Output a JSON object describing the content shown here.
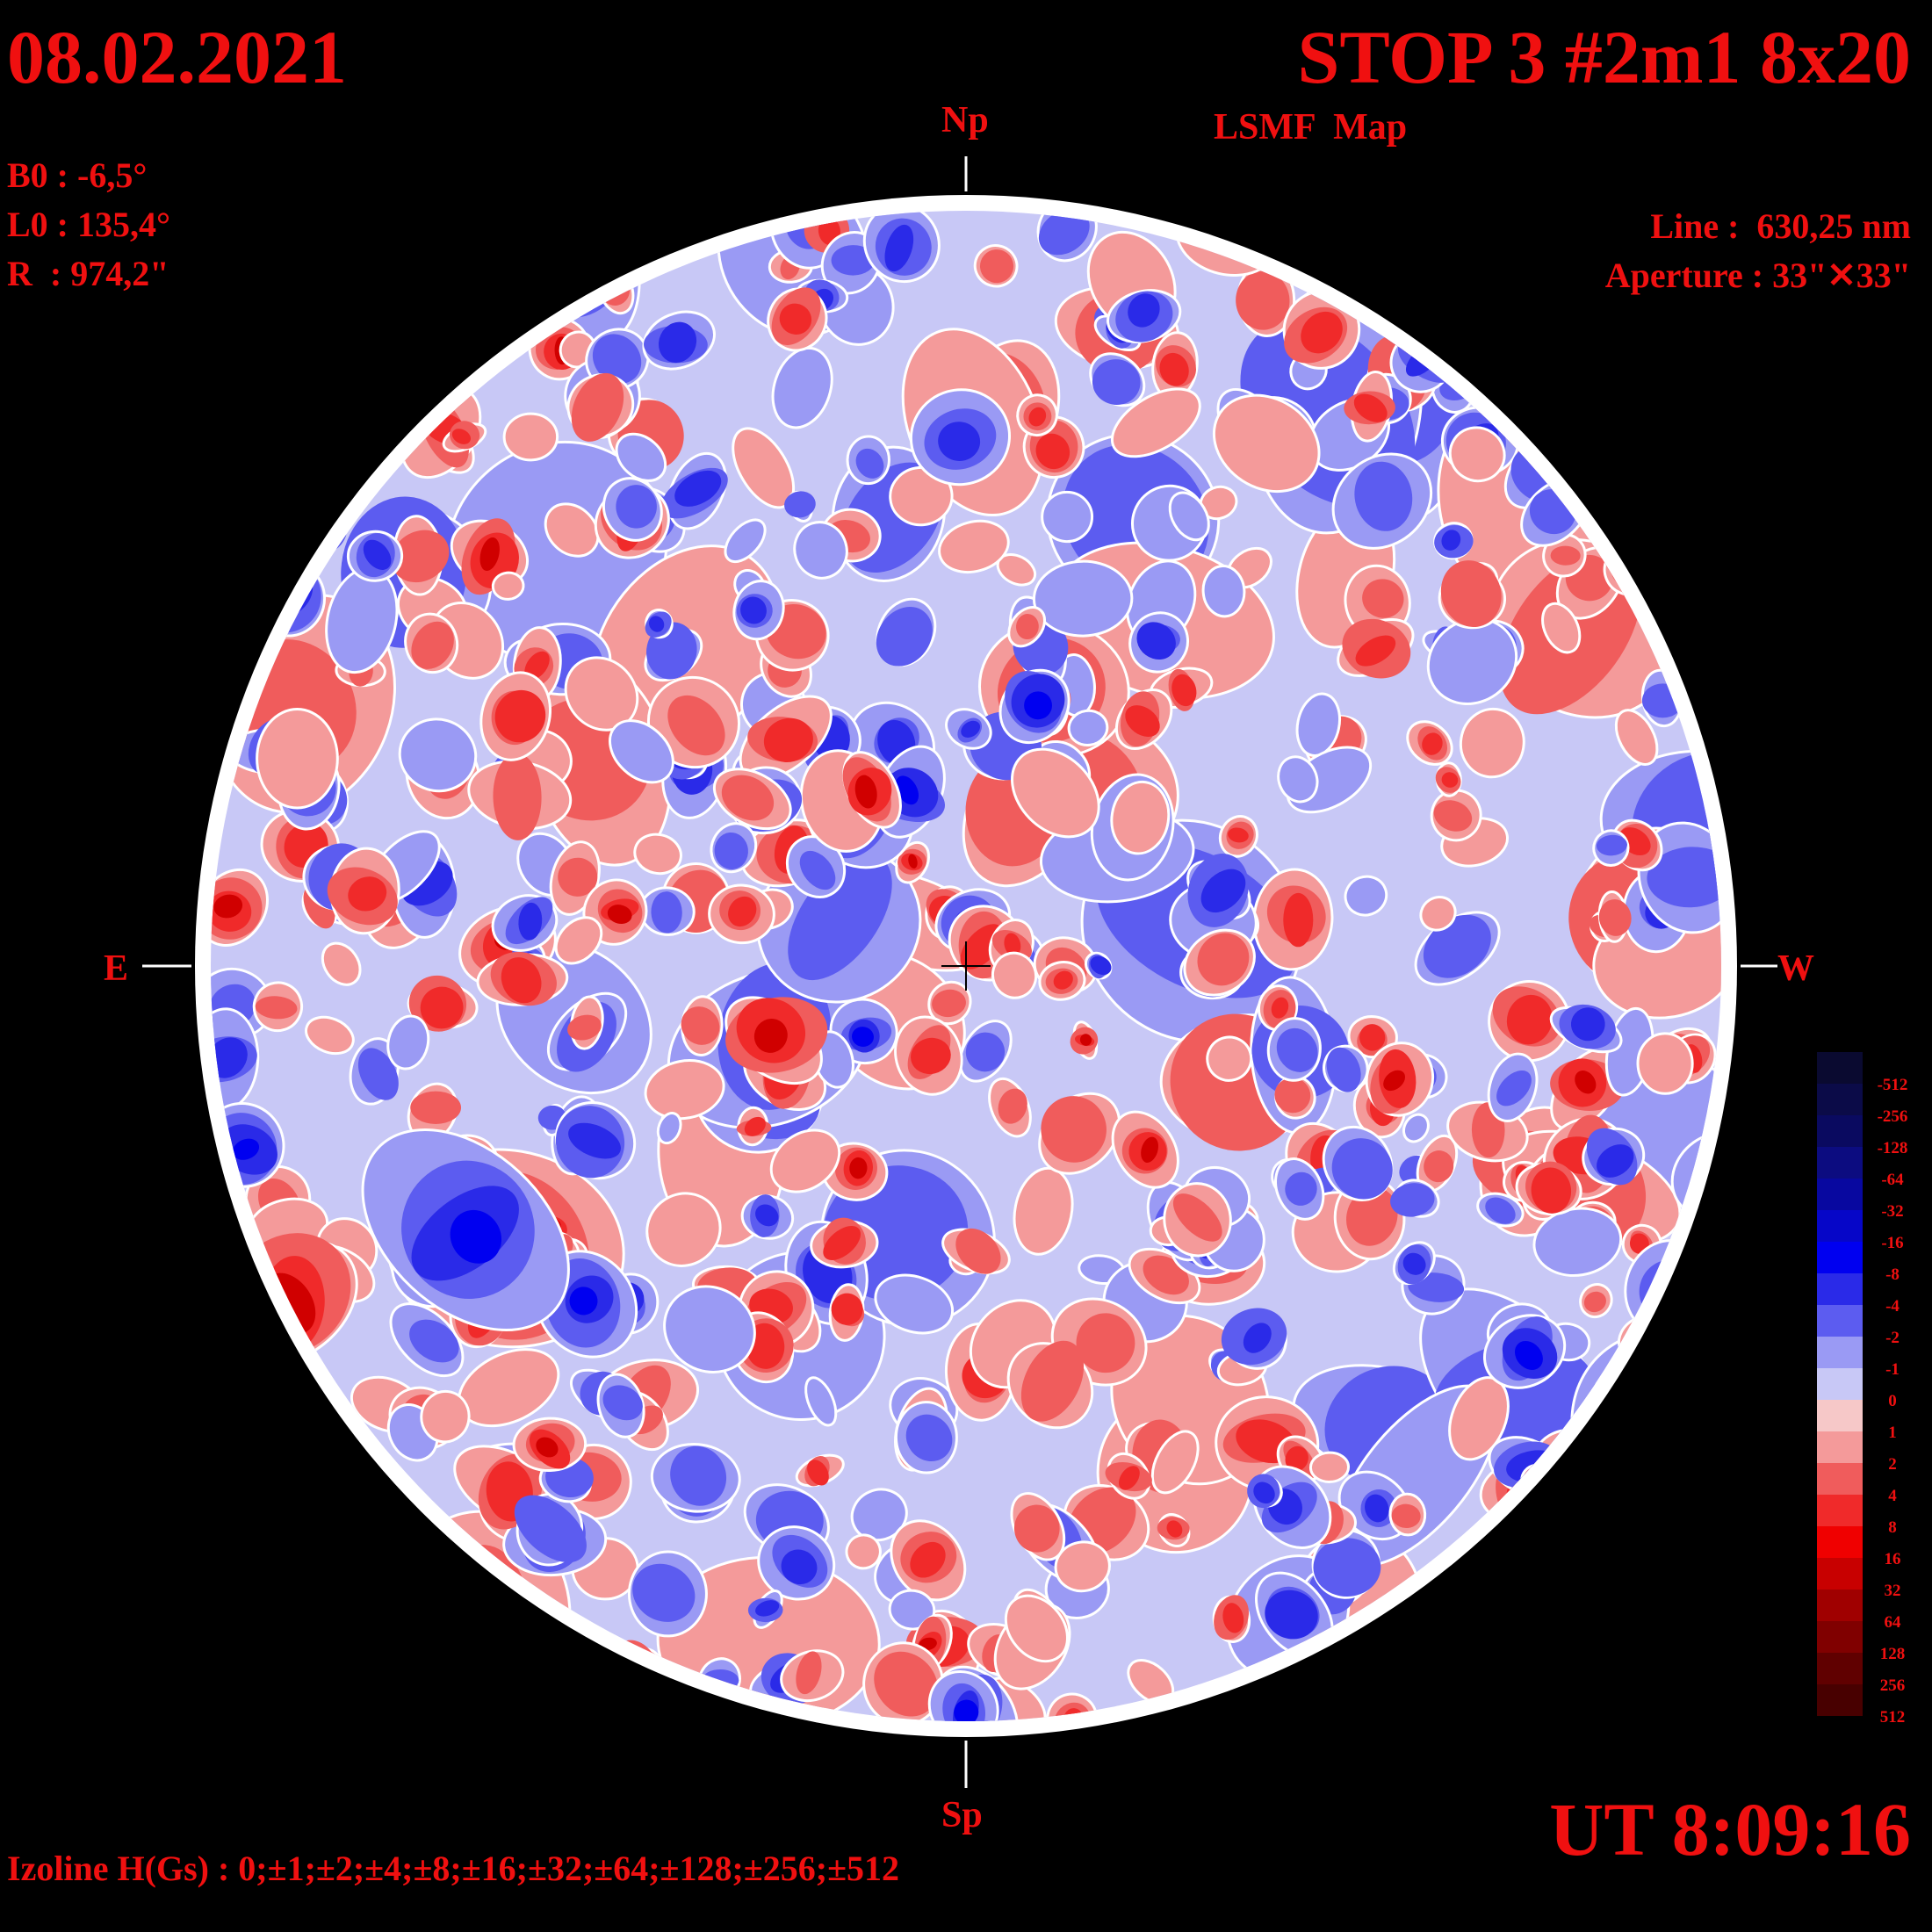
{
  "header": {
    "date": "08.02.2021",
    "title": "STOP 3 #2m1 8x20",
    "subtitle": "LSMF  Map"
  },
  "params": {
    "b0": "B0 : -6,5°",
    "l0": "L0 : 135,4°",
    "r": "R  : 974,2\""
  },
  "instrument": {
    "line": "Line :  630,25 nm",
    "aperture": "Aperture : 33\"✕33\""
  },
  "directions": {
    "north": "Np",
    "south": "Sp",
    "east": "E",
    "west": "W"
  },
  "footer": {
    "izoline": "Izoline H(Gs) : 0;±1;±2;±4;±8;±16;±32;±64;±128;±256;±512",
    "ut": "UT 8:09:16"
  },
  "scale": {
    "labels": [
      "-512",
      "-256",
      "-128",
      "-64",
      "-32",
      "-16",
      "-8",
      "-4",
      "-2",
      "-1",
      "0",
      "1",
      "2",
      "4",
      "8",
      "16",
      "32",
      "64",
      "128",
      "256",
      "512"
    ],
    "colors": [
      "#0a0a30",
      "#0b0b48",
      "#0a0a60",
      "#0c0c80",
      "#0808a0",
      "#0606c8",
      "#0000f0",
      "#2a2ae8",
      "#5c5cf0",
      "#9a9af4",
      "#c8c8f6",
      "#f6c8c8",
      "#f49a9a",
      "#f05c5c",
      "#f02a2a",
      "#f00000",
      "#c80000",
      "#a00000",
      "#800000",
      "#600000",
      "#480000"
    ]
  },
  "colors": {
    "text": "#f01010",
    "blue_shades": [
      "#c8c8f6",
      "#9a9af4",
      "#5c5cf0",
      "#2a2ae8",
      "#0000f0"
    ],
    "red_shades": [
      "#f6c8c8",
      "#f49a9a",
      "#f05c5c",
      "#f02a2a",
      "#d00000"
    ]
  }
}
